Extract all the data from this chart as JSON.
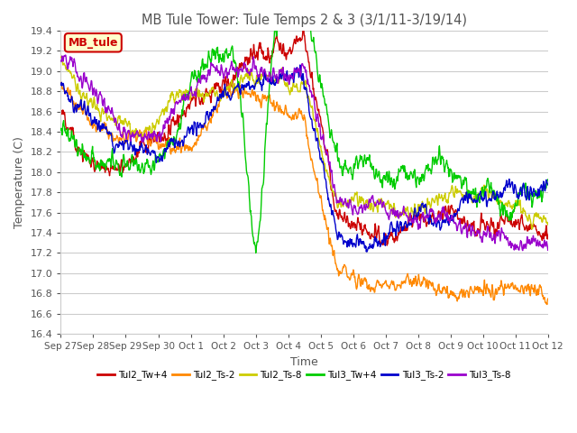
{
  "title": "MB Tule Tower: Tule Temps 2 & 3 (3/1/11-3/19/14)",
  "xlabel": "Time",
  "ylabel": "Temperature (C)",
  "ylim": [
    16.4,
    19.4
  ],
  "yticks": [
    16.4,
    16.6,
    16.8,
    17.0,
    17.2,
    17.4,
    17.6,
    17.8,
    18.0,
    18.2,
    18.4,
    18.6,
    18.8,
    19.0,
    19.2,
    19.4
  ],
  "xtick_labels": [
    "Sep 27",
    "Sep 28",
    "Sep 29",
    "Sep 30",
    "Oct 1",
    "Oct 2",
    "Oct 3",
    "Oct 4",
    "Oct 5",
    "Oct 6",
    "Oct 7",
    "Oct 8",
    "Oct 9",
    "Oct 10",
    "Oct 11",
    "Oct 12"
  ],
  "series": [
    {
      "label": "Tul2_Tw+4",
      "color": "#cc0000"
    },
    {
      "label": "Tul2_Ts-2",
      "color": "#ff8800"
    },
    {
      "label": "Tul2_Ts-8",
      "color": "#cccc00"
    },
    {
      "label": "Tul3_Tw+4",
      "color": "#00cc00"
    },
    {
      "label": "Tul3_Ts-2",
      "color": "#0000cc"
    },
    {
      "label": "Tul3_Ts-8",
      "color": "#9900cc"
    }
  ],
  "annotation_box": {
    "text": "MB_tule",
    "color": "#cc0000",
    "bg": "#ffffcc"
  },
  "background_color": "#ffffff",
  "grid_color": "#cccccc",
  "title_color": "#555555",
  "axis_label_color": "#555555",
  "tick_label_color": "#555555"
}
